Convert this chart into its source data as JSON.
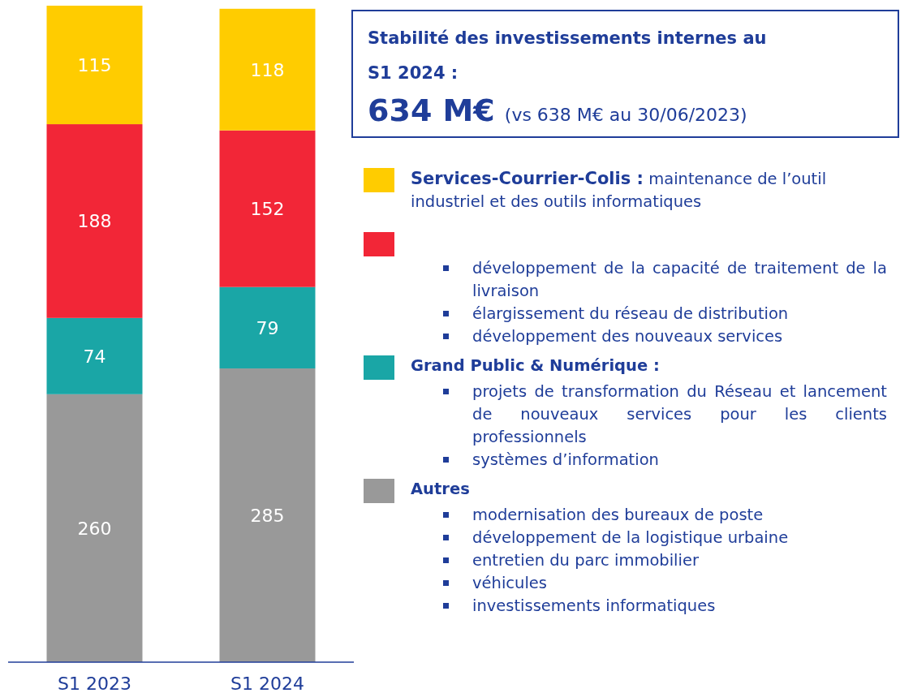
{
  "chart_data": {
    "type": "bar",
    "stacked": true,
    "data_labels": true,
    "legend": "right",
    "title": "Stabilité des investissements internes au S1 2024 :",
    "subtitle": "634 M€",
    "categories": [
      "S1 2023",
      "S1 2024"
    ],
    "series": [
      {
        "name": "Autres",
        "color": "#999999",
        "values": [
          260,
          285
        ]
      },
      {
        "name": "Grand Public & Numérique :",
        "color": "#1aa6a6",
        "values": [
          74,
          79
        ]
      },
      {
        "color": "#f22637",
        "values": [
          188,
          152
        ]
      },
      {
        "name": "Services-Courrier-Colis :",
        "color": "#ffcc00",
        "values": [
          115,
          118
        ]
      }
    ],
    "annotations": [
      "(vs 638 M€ au 30/06/2023)",
      "maintenance de l’outil industriel et des outils informatiques",
      "développement de la capacité de traitement de la livraison",
      "élargissement du réseau de distribution",
      "développement des nouveaux services",
      "projets de transformation du Réseau et lancement de nouveaux services pour les clients professionnels",
      "systèmes d’information",
      "modernisation des bureaux de poste",
      "développement de la logistique urbaine",
      "entretien du parc immobilier",
      "véhicules",
      "investissements informatiques"
    ]
  }
}
